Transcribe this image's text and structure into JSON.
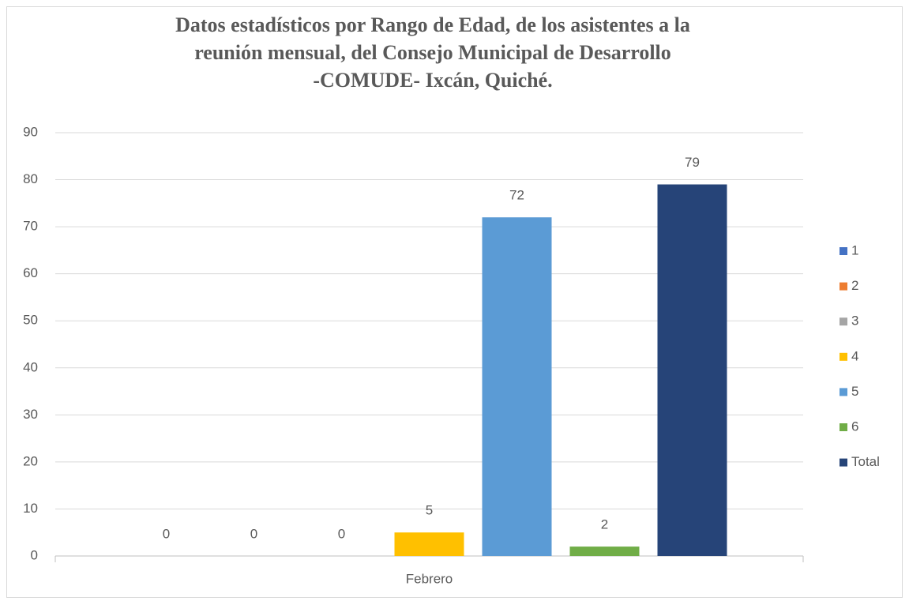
{
  "chart_data": {
    "type": "bar",
    "title": "Datos estadísticos por Rango de Edad, de los asistentes a la\nreunión mensual, del Consejo Municipal de Desarrollo\n-COMUDE- Ixcán, Quiché.",
    "categories": [
      "Febrero"
    ],
    "series": [
      {
        "name": "1",
        "color": "#4472c4",
        "values": [
          0
        ]
      },
      {
        "name": "2",
        "color": "#ed7d31",
        "values": [
          0
        ]
      },
      {
        "name": "3",
        "color": "#a5a5a5",
        "values": [
          0
        ]
      },
      {
        "name": "4",
        "color": "#ffc000",
        "values": [
          5
        ]
      },
      {
        "name": "5",
        "color": "#5b9bd5",
        "values": [
          72
        ]
      },
      {
        "name": "6",
        "color": "#70ad47",
        "values": [
          2
        ]
      },
      {
        "name": "Total",
        "color": "#264478",
        "values": [
          79
        ]
      }
    ],
    "ylim": [
      0,
      90
    ],
    "yticks": [
      0,
      10,
      20,
      30,
      40,
      50,
      60,
      70,
      80,
      90
    ],
    "grid": true,
    "legend": "right",
    "data_labels": true
  }
}
